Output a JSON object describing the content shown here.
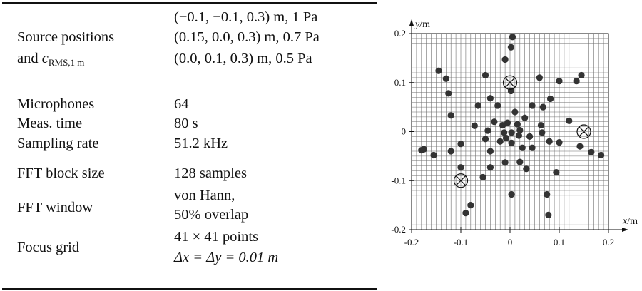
{
  "table": {
    "rows": [
      {
        "label_lines": [
          "Source positions",
          "and c_RMS,1 m"
        ],
        "value_lines": [
          "(−0.1, −0.1, 0.3) m, 1 Pa",
          "(0.15, 0.0, 0.3) m, 0.7 Pa",
          "(0.0, 0.1, 0.3) m, 0.5 Pa"
        ]
      },
      {
        "label": "Microphones",
        "value": "64"
      },
      {
        "label": "Meas. time",
        "value": "80 s"
      },
      {
        "label": "Sampling rate",
        "value": "51.2 kHz"
      },
      {
        "label": "FFT block size",
        "value": "128 samples"
      },
      {
        "label": "FFT window",
        "value_lines": [
          "von Hann,",
          "50% overlap"
        ]
      },
      {
        "label": "Focus grid",
        "value_lines": [
          "41 × 41 points",
          "Δx = Δy = 0.01 m"
        ]
      }
    ]
  },
  "chart_data": {
    "type": "scatter",
    "xlabel": "x/m",
    "ylabel": "y/m",
    "xlim": [
      -0.2,
      0.2
    ],
    "ylim": [
      -0.2,
      0.2
    ],
    "xticks": [
      "-0.2",
      "-0.1",
      "0",
      "0.1",
      "0.2"
    ],
    "yticks": [
      "0.2",
      "0.1",
      "0",
      "-0.1",
      "-0.2"
    ],
    "grid": "41 × 41 focus grid, spacing 0.01 m",
    "series": [
      {
        "marker": "filled-circle",
        "x": [
          0.005,
          0.002,
          -0.01,
          -0.145,
          -0.13,
          -0.05,
          0.06,
          0.1,
          0.135,
          0.145,
          -0.125,
          0.002,
          -0.04,
          -0.025,
          0.082,
          0.067,
          -0.065,
          -0.12,
          0.045,
          0.03,
          0.01,
          -0.005,
          -0.032,
          -0.015,
          0.015,
          0.063,
          0.12,
          -0.072,
          0.02,
          -0.045,
          -0.012,
          0.003,
          0.018,
          -0.008,
          0.04,
          0.065,
          -0.02,
          0.003,
          0.025,
          0.045,
          -0.12,
          -0.18,
          -0.175,
          -0.155,
          -0.04,
          -0.1,
          -0.05,
          -0.01,
          0.02,
          0.08,
          0.1,
          0.142,
          0.165,
          0.185,
          0.033,
          -0.1,
          -0.055,
          -0.04,
          0.094,
          0.003,
          -0.08,
          -0.09,
          0.075,
          0.078
        ],
        "y": [
          0.193,
          0.172,
          0.147,
          0.124,
          0.108,
          0.115,
          0.11,
          0.103,
          0.103,
          0.115,
          0.078,
          0.083,
          0.068,
          0.053,
          0.067,
          0.05,
          0.053,
          0.033,
          0.053,
          0.028,
          0.04,
          0.018,
          0.02,
          0.013,
          0.015,
          0.013,
          0.022,
          0.012,
          0.003,
          0.002,
          -0.002,
          -0.002,
          -0.008,
          -0.013,
          -0.01,
          -0.002,
          -0.02,
          -0.023,
          -0.033,
          -0.033,
          -0.04,
          -0.038,
          -0.036,
          -0.048,
          -0.04,
          -0.025,
          -0.015,
          -0.063,
          -0.062,
          -0.02,
          -0.022,
          -0.03,
          -0.042,
          -0.048,
          -0.076,
          -0.073,
          -0.093,
          -0.073,
          -0.083,
          -0.128,
          -0.15,
          -0.166,
          -0.128,
          -0.17
        ]
      },
      {
        "marker": "circled-cross",
        "x": [
          -0.1,
          0.15,
          0.0
        ],
        "y": [
          -0.1,
          0.0,
          0.1
        ]
      }
    ]
  }
}
